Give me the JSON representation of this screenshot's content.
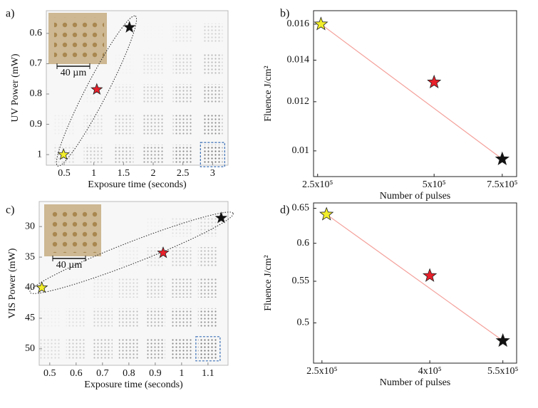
{
  "chart_data": [
    {
      "type": "image",
      "panel_label": "a)",
      "xlabel": "Exposure time (seconds)",
      "ylabel": "UV Power (mW)",
      "xticks": [
        0.5,
        1,
        1.5,
        2,
        2.5,
        3
      ],
      "xlim": [
        0.2,
        3.26
      ],
      "yticks": [
        0.6,
        0.7,
        0.8,
        0.9,
        1
      ],
      "ylim": [
        1.035,
        0.525
      ],
      "scale_bar": "40 µm",
      "markers": [
        {
          "color": "#f2ee2a",
          "x": 0.49,
          "y": 1
        },
        {
          "color": "#e8202a",
          "x": 1.05,
          "y": 0.785
        },
        {
          "color": "#111111",
          "x": 1.6,
          "y": 0.58
        }
      ]
    },
    {
      "type": "scatter",
      "panel_label": "b)",
      "xlabel": "Number of pulses",
      "ylabel": "Fluence J/cm²",
      "xscale": "log",
      "yscale": "log",
      "xticks": [
        {
          "value": 250000,
          "label": "2.5x10⁵"
        },
        {
          "value": 500000,
          "label": "5x10⁵"
        },
        {
          "value": 750000,
          "label": "7.5x10⁵"
        }
      ],
      "xlim": [
        244000,
        817000
      ],
      "yticks": [
        0.01,
        0.012,
        0.014,
        0.016
      ],
      "ylim": [
        0.00909,
        0.01682
      ],
      "line_color": "#f4a09a",
      "markers": [
        {
          "color": "#f2ee2a",
          "x": 255000,
          "y": 0.016
        },
        {
          "color": "#e8202a",
          "x": 500000,
          "y": 0.0129
        },
        {
          "color": "#111111",
          "x": 750000,
          "y": 0.0097
        }
      ]
    },
    {
      "type": "image",
      "panel_label": "c)",
      "xlabel": "Exposure time (seconds)",
      "ylabel": "VIS Power (mW)",
      "xticks": [
        0.5,
        0.6,
        0.7,
        0.8,
        0.9,
        1,
        1.1
      ],
      "xlim": [
        0.46,
        1.176
      ],
      "yticks": [
        30,
        35,
        40,
        45,
        50
      ],
      "ylim": [
        52.7,
        25.9
      ],
      "scale_bar": "40 µm",
      "markers": [
        {
          "color": "#f2ee2a",
          "x": 0.47,
          "y": 40
        },
        {
          "color": "#e8202a",
          "x": 0.93,
          "y": 34.3
        },
        {
          "color": "#111111",
          "x": 1.15,
          "y": 28.6
        }
      ]
    },
    {
      "type": "scatter",
      "panel_label": "d)",
      "xlabel": "Number of pulses",
      "ylabel": "Fluence J/cm²",
      "xscale": "log",
      "yscale": "log",
      "xticks": [
        {
          "value": 250000,
          "label": "2.5x10⁵"
        },
        {
          "value": 400000,
          "label": "4x10⁵"
        },
        {
          "value": 550000,
          "label": "5.5x10⁵"
        }
      ],
      "xlim": [
        241000,
        584000
      ],
      "yticks": [
        0.5,
        0.55,
        0.6,
        0.65
      ],
      "ylim": [
        0.456,
        0.658
      ],
      "line_color": "#f4a09a",
      "markers": [
        {
          "color": "#f2ee2a",
          "x": 255000,
          "y": 0.641
        },
        {
          "color": "#e8202a",
          "x": 400000,
          "y": 0.557
        },
        {
          "color": "#111111",
          "x": 550000,
          "y": 0.48
        }
      ]
    }
  ]
}
